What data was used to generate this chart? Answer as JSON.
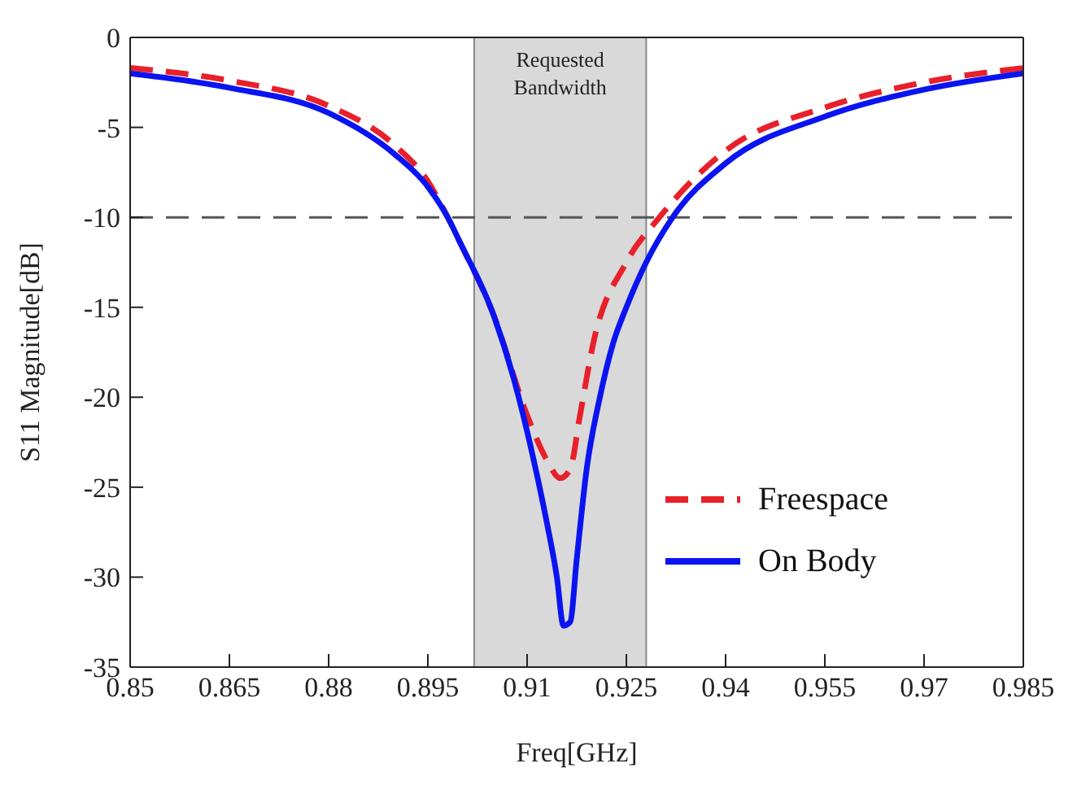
{
  "chart_data": {
    "type": "line",
    "xlabel": "Freq[GHz]",
    "ylabel": "S11 Magnitude[dB]",
    "xlim": [
      0.85,
      0.985
    ],
    "xticks": [
      0.85,
      0.865,
      0.88,
      0.895,
      0.91,
      0.925,
      0.94,
      0.955,
      0.97,
      0.985
    ],
    "ylim": [
      -35,
      0
    ],
    "yticks": [
      -35,
      -30,
      -25,
      -20,
      -15,
      -10,
      -5,
      0
    ],
    "grid": false,
    "legend": "bottom right",
    "marker": "none",
    "ref_lines": [
      {
        "axis": "y",
        "value": -10,
        "color": "#555555",
        "line_style": "dashed"
      }
    ],
    "bands": [
      {
        "axis": "x",
        "from": 0.902,
        "to": 0.928,
        "label": "Requested Bandwidth",
        "color": "#d9d9d9"
      }
    ],
    "series": [
      {
        "name": "Freespace",
        "color": "#e8202a",
        "line_style": "dashed",
        "x": [
          0.85,
          0.865,
          0.88,
          0.89,
          0.895,
          0.898,
          0.9,
          0.905,
          0.91,
          0.913,
          0.915,
          0.9165,
          0.918,
          0.92,
          0.925,
          0.93,
          0.94,
          0.955,
          0.97,
          0.985
        ],
        "values": [
          -1.7,
          -2.4,
          -3.8,
          -6.0,
          -8.0,
          -10,
          -11.5,
          -15.5,
          -21,
          -23.5,
          -24.5,
          -24,
          -21,
          -17,
          -12.5,
          -10,
          -6.3,
          -3.9,
          -2.5,
          -1.7
        ]
      },
      {
        "name": "On Body",
        "color": "#0a14f0",
        "line_style": "solid",
        "x": [
          0.85,
          0.865,
          0.88,
          0.89,
          0.895,
          0.898,
          0.9,
          0.905,
          0.908,
          0.911,
          0.913,
          0.9145,
          0.9155,
          0.9165,
          0.9175,
          0.919,
          0.921,
          0.923,
          0.925,
          0.928,
          0.932,
          0.94,
          0.955,
          0.97,
          0.985
        ],
        "values": [
          -2.0,
          -2.8,
          -4.2,
          -6.5,
          -8.3,
          -10,
          -11.5,
          -15.5,
          -19,
          -23.5,
          -27,
          -30,
          -32.7,
          -32.5,
          -29,
          -24,
          -20,
          -17,
          -15,
          -12.5,
          -10,
          -7,
          -4.4,
          -2.9,
          -2.0
        ]
      }
    ]
  }
}
